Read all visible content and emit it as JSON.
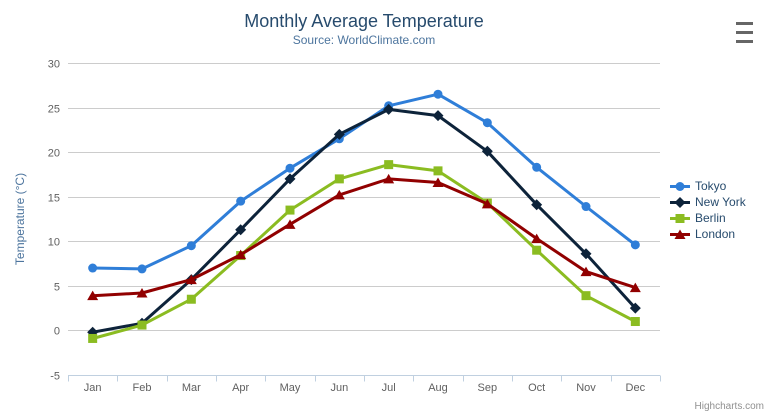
{
  "chart_data": {
    "type": "line",
    "title": "Monthly Average Temperature",
    "subtitle": "Source: WorldClimate.com",
    "xlabel": "",
    "ylabel": "Temperature (°C)",
    "categories": [
      "Jan",
      "Feb",
      "Mar",
      "Apr",
      "May",
      "Jun",
      "Jul",
      "Aug",
      "Sep",
      "Oct",
      "Nov",
      "Dec"
    ],
    "yticks": [
      -5,
      0,
      5,
      10,
      15,
      20,
      25,
      30
    ],
    "ylim": [
      -5,
      30
    ],
    "grid": "horizontal",
    "legend_position": "right",
    "series": [
      {
        "name": "Tokyo",
        "color": "#2f7ed8",
        "marker": "circle",
        "values": [
          7.0,
          6.9,
          9.5,
          14.5,
          18.2,
          21.5,
          25.2,
          26.5,
          23.3,
          18.3,
          13.9,
          9.6
        ]
      },
      {
        "name": "New York",
        "color": "#0d233a",
        "marker": "diamond",
        "values": [
          -0.2,
          0.8,
          5.7,
          11.3,
          17.0,
          22.0,
          24.8,
          24.1,
          20.1,
          14.1,
          8.6,
          2.5
        ]
      },
      {
        "name": "Berlin",
        "color": "#8bbc21",
        "marker": "square",
        "values": [
          -0.9,
          0.6,
          3.5,
          8.4,
          13.5,
          17.0,
          18.6,
          17.9,
          14.3,
          9.0,
          3.9,
          1.0
        ]
      },
      {
        "name": "London",
        "color": "#910000",
        "marker": "triangle",
        "values": [
          3.9,
          4.2,
          5.7,
          8.5,
          11.9,
          15.2,
          17.0,
          16.6,
          14.2,
          10.3,
          6.6,
          4.8
        ]
      }
    ]
  },
  "footer": {
    "credits": "Highcharts.com"
  },
  "icons": {
    "export_menu": "hamburger-icon"
  },
  "colors": {
    "title": "#274b6d",
    "subtitle": "#4d759e",
    "axis_title": "#4d759e",
    "axis_labels": "#606060",
    "gridline": "#cccccc",
    "x_axis_line": "#C0D0E0",
    "legend_text": "#274b6d",
    "credits": "#909090",
    "menu_icon": "#666666"
  }
}
